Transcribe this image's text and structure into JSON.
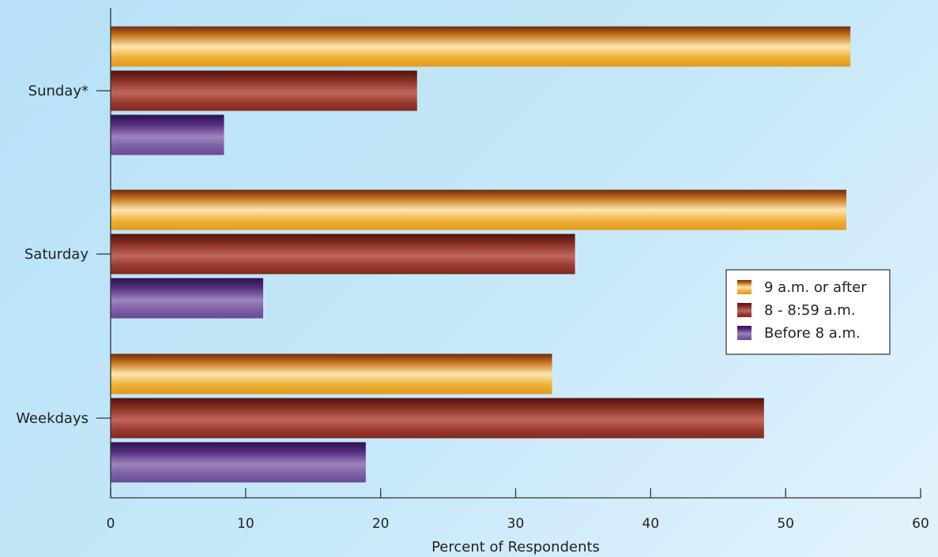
{
  "chart_data": {
    "type": "bar",
    "orientation": "horizontal",
    "title": "",
    "xlabel": "Percent of Respondents",
    "ylabel": "",
    "xlim": [
      0,
      60
    ],
    "xticks": [
      0,
      10,
      20,
      30,
      40,
      50,
      60
    ],
    "categories": [
      "Sunday*",
      "Saturday",
      "Weekdays"
    ],
    "series": [
      {
        "name": "9 a.m. or after",
        "values": [
          54.8,
          54.5,
          32.7
        ],
        "color": "#e8a21f"
      },
      {
        "name": "8 - 8:59 a.m.",
        "values": [
          22.7,
          34.4,
          48.4
        ],
        "color": "#8c2f24"
      },
      {
        "name": "Before 8 a.m.",
        "values": [
          8.4,
          11.3,
          18.9
        ],
        "color": "#5b3480"
      }
    ],
    "legend": {
      "placement": "right-middle"
    },
    "grid": false
  }
}
